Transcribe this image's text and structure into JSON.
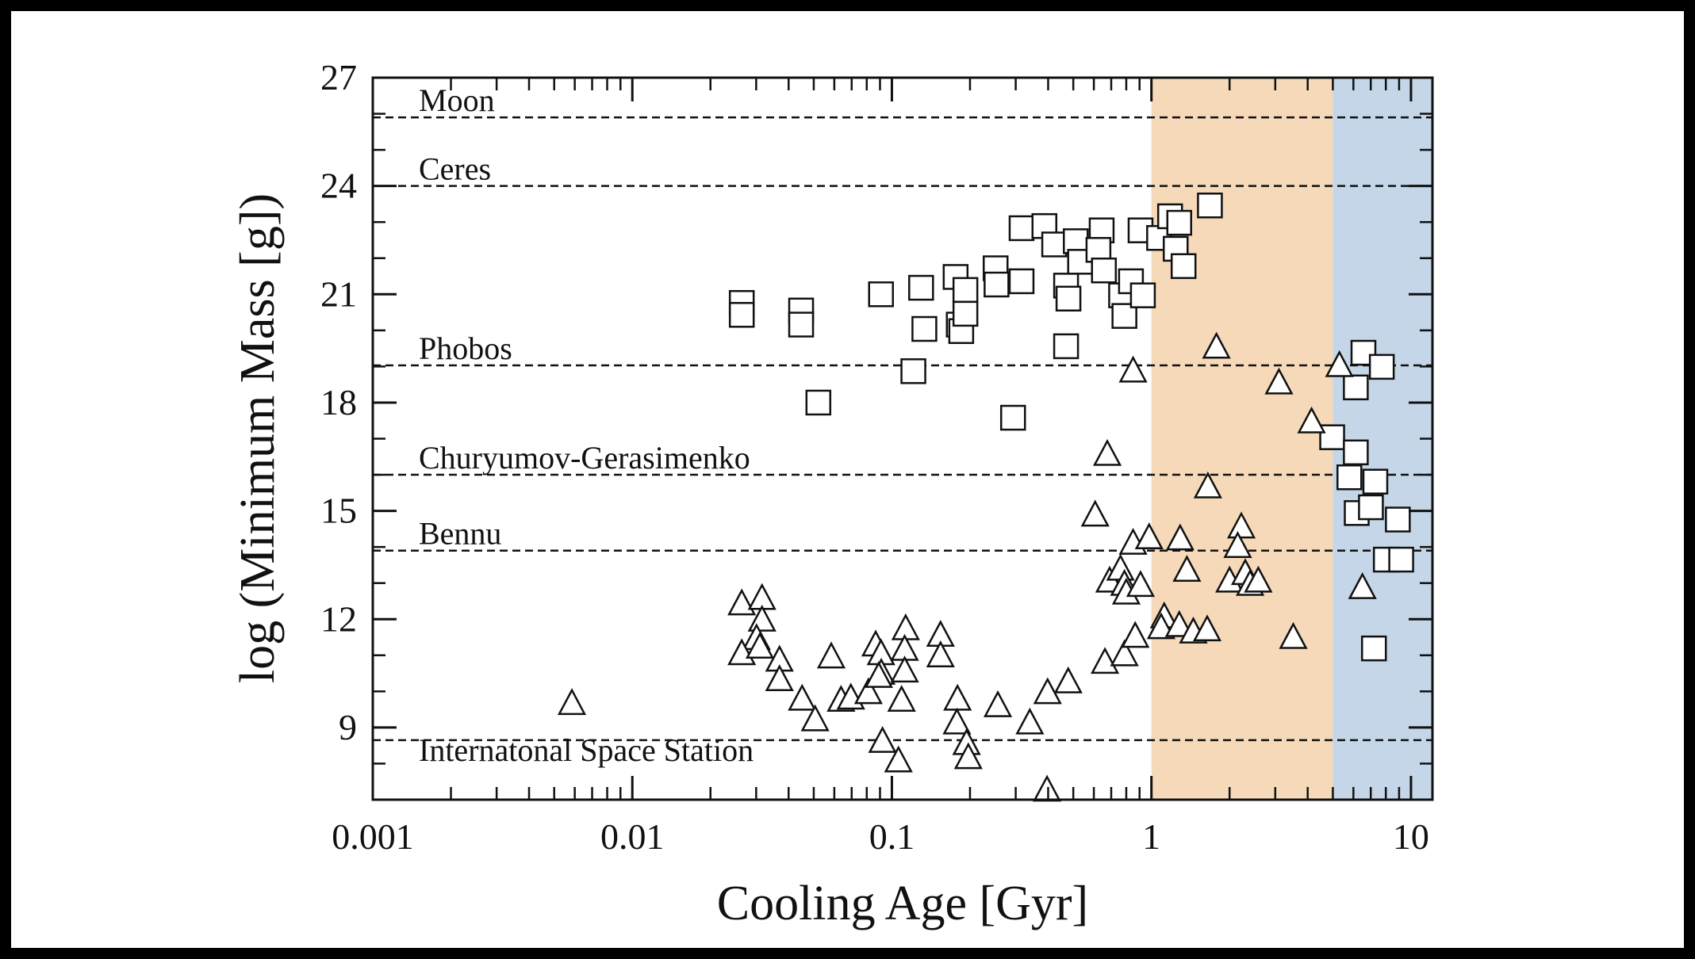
{
  "chart_data": {
    "type": "scatter",
    "title": "",
    "xlabel": "Cooling Age [Gyr]",
    "ylabel": "log (Minimum Mass [g])",
    "xscale": "log",
    "xlim": [
      0.001,
      12.1
    ],
    "ylim": [
      7,
      27
    ],
    "xticks": [
      {
        "v": 0.001,
        "label": "0.001"
      },
      {
        "v": 0.01,
        "label": "0.01"
      },
      {
        "v": 0.1,
        "label": "0.1"
      },
      {
        "v": 1,
        "label": "1"
      },
      {
        "v": 10,
        "label": "10"
      }
    ],
    "yticks": [
      {
        "v": 9,
        "label": "9"
      },
      {
        "v": 12,
        "label": "12"
      },
      {
        "v": 15,
        "label": "15"
      },
      {
        "v": 18,
        "label": "18"
      },
      {
        "v": 21,
        "label": "21"
      },
      {
        "v": 24,
        "label": "24"
      },
      {
        "v": 27,
        "label": "27"
      }
    ],
    "bands": [
      {
        "from": 1,
        "to": 5,
        "color": "#f5d9b8"
      },
      {
        "from": 5,
        "to": 12.1,
        "color": "#c4d6e8"
      }
    ],
    "reference_lines": [
      {
        "label": "Moon",
        "y": 25.9
      },
      {
        "label": "Ceres",
        "y": 24.0
      },
      {
        "label": "Phobos",
        "y": 19.03
      },
      {
        "label": "Churyumov-Gerasimenko",
        "y": 16.0
      },
      {
        "label": "Bennu",
        "y": 13.9
      },
      {
        "label": "Internatonal Space Station",
        "y": 8.65
      }
    ],
    "series": [
      {
        "name": "squares",
        "marker": "square",
        "points": [
          [
            0.0264,
            20.76
          ],
          [
            0.0264,
            20.43
          ],
          [
            0.0447,
            20.55
          ],
          [
            0.0447,
            20.16
          ],
          [
            0.0521,
            18.0
          ],
          [
            0.0908,
            21.0
          ],
          [
            0.121,
            18.87
          ],
          [
            0.1296,
            21.18
          ],
          [
            0.1334,
            20.04
          ],
          [
            0.176,
            21.48
          ],
          [
            0.181,
            20.16
          ],
          [
            0.185,
            19.98
          ],
          [
            0.192,
            21.12
          ],
          [
            0.192,
            20.46
          ],
          [
            0.251,
            21.72
          ],
          [
            0.253,
            21.27
          ],
          [
            0.316,
            22.83
          ],
          [
            0.316,
            21.36
          ],
          [
            0.293,
            17.58
          ],
          [
            0.387,
            22.89
          ],
          [
            0.422,
            22.38
          ],
          [
            0.469,
            21.24
          ],
          [
            0.479,
            20.88
          ],
          [
            0.469,
            19.56
          ],
          [
            0.511,
            22.47
          ],
          [
            0.531,
            21.9
          ],
          [
            0.643,
            22.77
          ],
          [
            0.625,
            22.23
          ],
          [
            0.656,
            21.66
          ],
          [
            0.764,
            20.97
          ],
          [
            0.787,
            20.4
          ],
          [
            0.834,
            21.36
          ],
          [
            0.908,
            22.77
          ],
          [
            0.927,
            20.97
          ],
          [
            1.07,
            22.56
          ],
          [
            1.18,
            23.16
          ],
          [
            1.24,
            22.26
          ],
          [
            1.28,
            22.98
          ],
          [
            1.33,
            21.78
          ],
          [
            1.68,
            23.46
          ],
          [
            4.97,
            17.04
          ],
          [
            6.13,
            16.62
          ],
          [
            5.79,
            15.93
          ],
          [
            6.18,
            14.94
          ],
          [
            7.29,
            15.81
          ],
          [
            7.01,
            15.1
          ],
          [
            8.9,
            14.76
          ],
          [
            8.0,
            13.65
          ],
          [
            9.17,
            13.65
          ],
          [
            6.56,
            19.38
          ],
          [
            6.13,
            18.42
          ],
          [
            7.72,
            18.99
          ],
          [
            7.2,
            11.19
          ]
        ]
      },
      {
        "name": "triangles",
        "marker": "triangle",
        "points": [
          [
            0.00585,
            9.66
          ],
          [
            0.0264,
            12.42
          ],
          [
            0.0316,
            12.57
          ],
          [
            0.0316,
            11.97
          ],
          [
            0.0301,
            11.46
          ],
          [
            0.0264,
            11.04
          ],
          [
            0.031,
            11.22
          ],
          [
            0.0369,
            10.86
          ],
          [
            0.0369,
            10.32
          ],
          [
            0.0451,
            9.78
          ],
          [
            0.0506,
            9.21
          ],
          [
            0.0584,
            10.95
          ],
          [
            0.0637,
            9.75
          ],
          [
            0.0695,
            9.81
          ],
          [
            0.0812,
            9.96
          ],
          [
            0.0866,
            11.28
          ],
          [
            0.0908,
            11.04
          ],
          [
            0.091,
            10.5
          ],
          [
            0.113,
            11.73
          ],
          [
            0.112,
            11.16
          ],
          [
            0.112,
            10.56
          ],
          [
            0.109,
            9.75
          ],
          [
            0.089,
            10.41
          ],
          [
            0.154,
            11.55
          ],
          [
            0.154,
            10.98
          ],
          [
            0.179,
            9.78
          ],
          [
            0.178,
            9.12
          ],
          [
            0.194,
            8.55
          ],
          [
            0.197,
            8.16
          ],
          [
            0.256,
            9.6
          ],
          [
            0.34,
            9.12
          ],
          [
            0.398,
            9.96
          ],
          [
            0.478,
            10.26
          ],
          [
            0.092,
            8.61
          ],
          [
            0.106,
            8.07
          ],
          [
            0.396,
            7.26
          ],
          [
            0.662,
            10.8
          ],
          [
            0.787,
            11.01
          ],
          [
            0.866,
            11.52
          ],
          [
            0.676,
            16.56
          ],
          [
            0.607,
            14.88
          ],
          [
            0.85,
            18.87
          ],
          [
            0.69,
            13.05
          ],
          [
            0.76,
            13.38
          ],
          [
            0.787,
            12.96
          ],
          [
            0.8,
            12.72
          ],
          [
            0.908,
            12.93
          ],
          [
            0.85,
            14.1
          ],
          [
            0.98,
            14.25
          ],
          [
            1.12,
            12.06
          ],
          [
            1.09,
            11.76
          ],
          [
            1.28,
            11.82
          ],
          [
            1.45,
            11.64
          ],
          [
            1.64,
            11.7
          ],
          [
            1.29,
            14.22
          ],
          [
            1.37,
            13.35
          ],
          [
            1.65,
            15.66
          ],
          [
            1.78,
            19.53
          ],
          [
            2.0,
            13.05
          ],
          [
            2.22,
            14.55
          ],
          [
            2.15,
            14.01
          ],
          [
            2.3,
            13.26
          ],
          [
            2.4,
            12.96
          ],
          [
            2.58,
            13.05
          ],
          [
            3.1,
            18.54
          ],
          [
            3.52,
            11.49
          ],
          [
            4.14,
            17.46
          ],
          [
            5.3,
            19.02
          ],
          [
            6.5,
            12.87
          ]
        ]
      }
    ],
    "grid": false,
    "legend": "none"
  }
}
